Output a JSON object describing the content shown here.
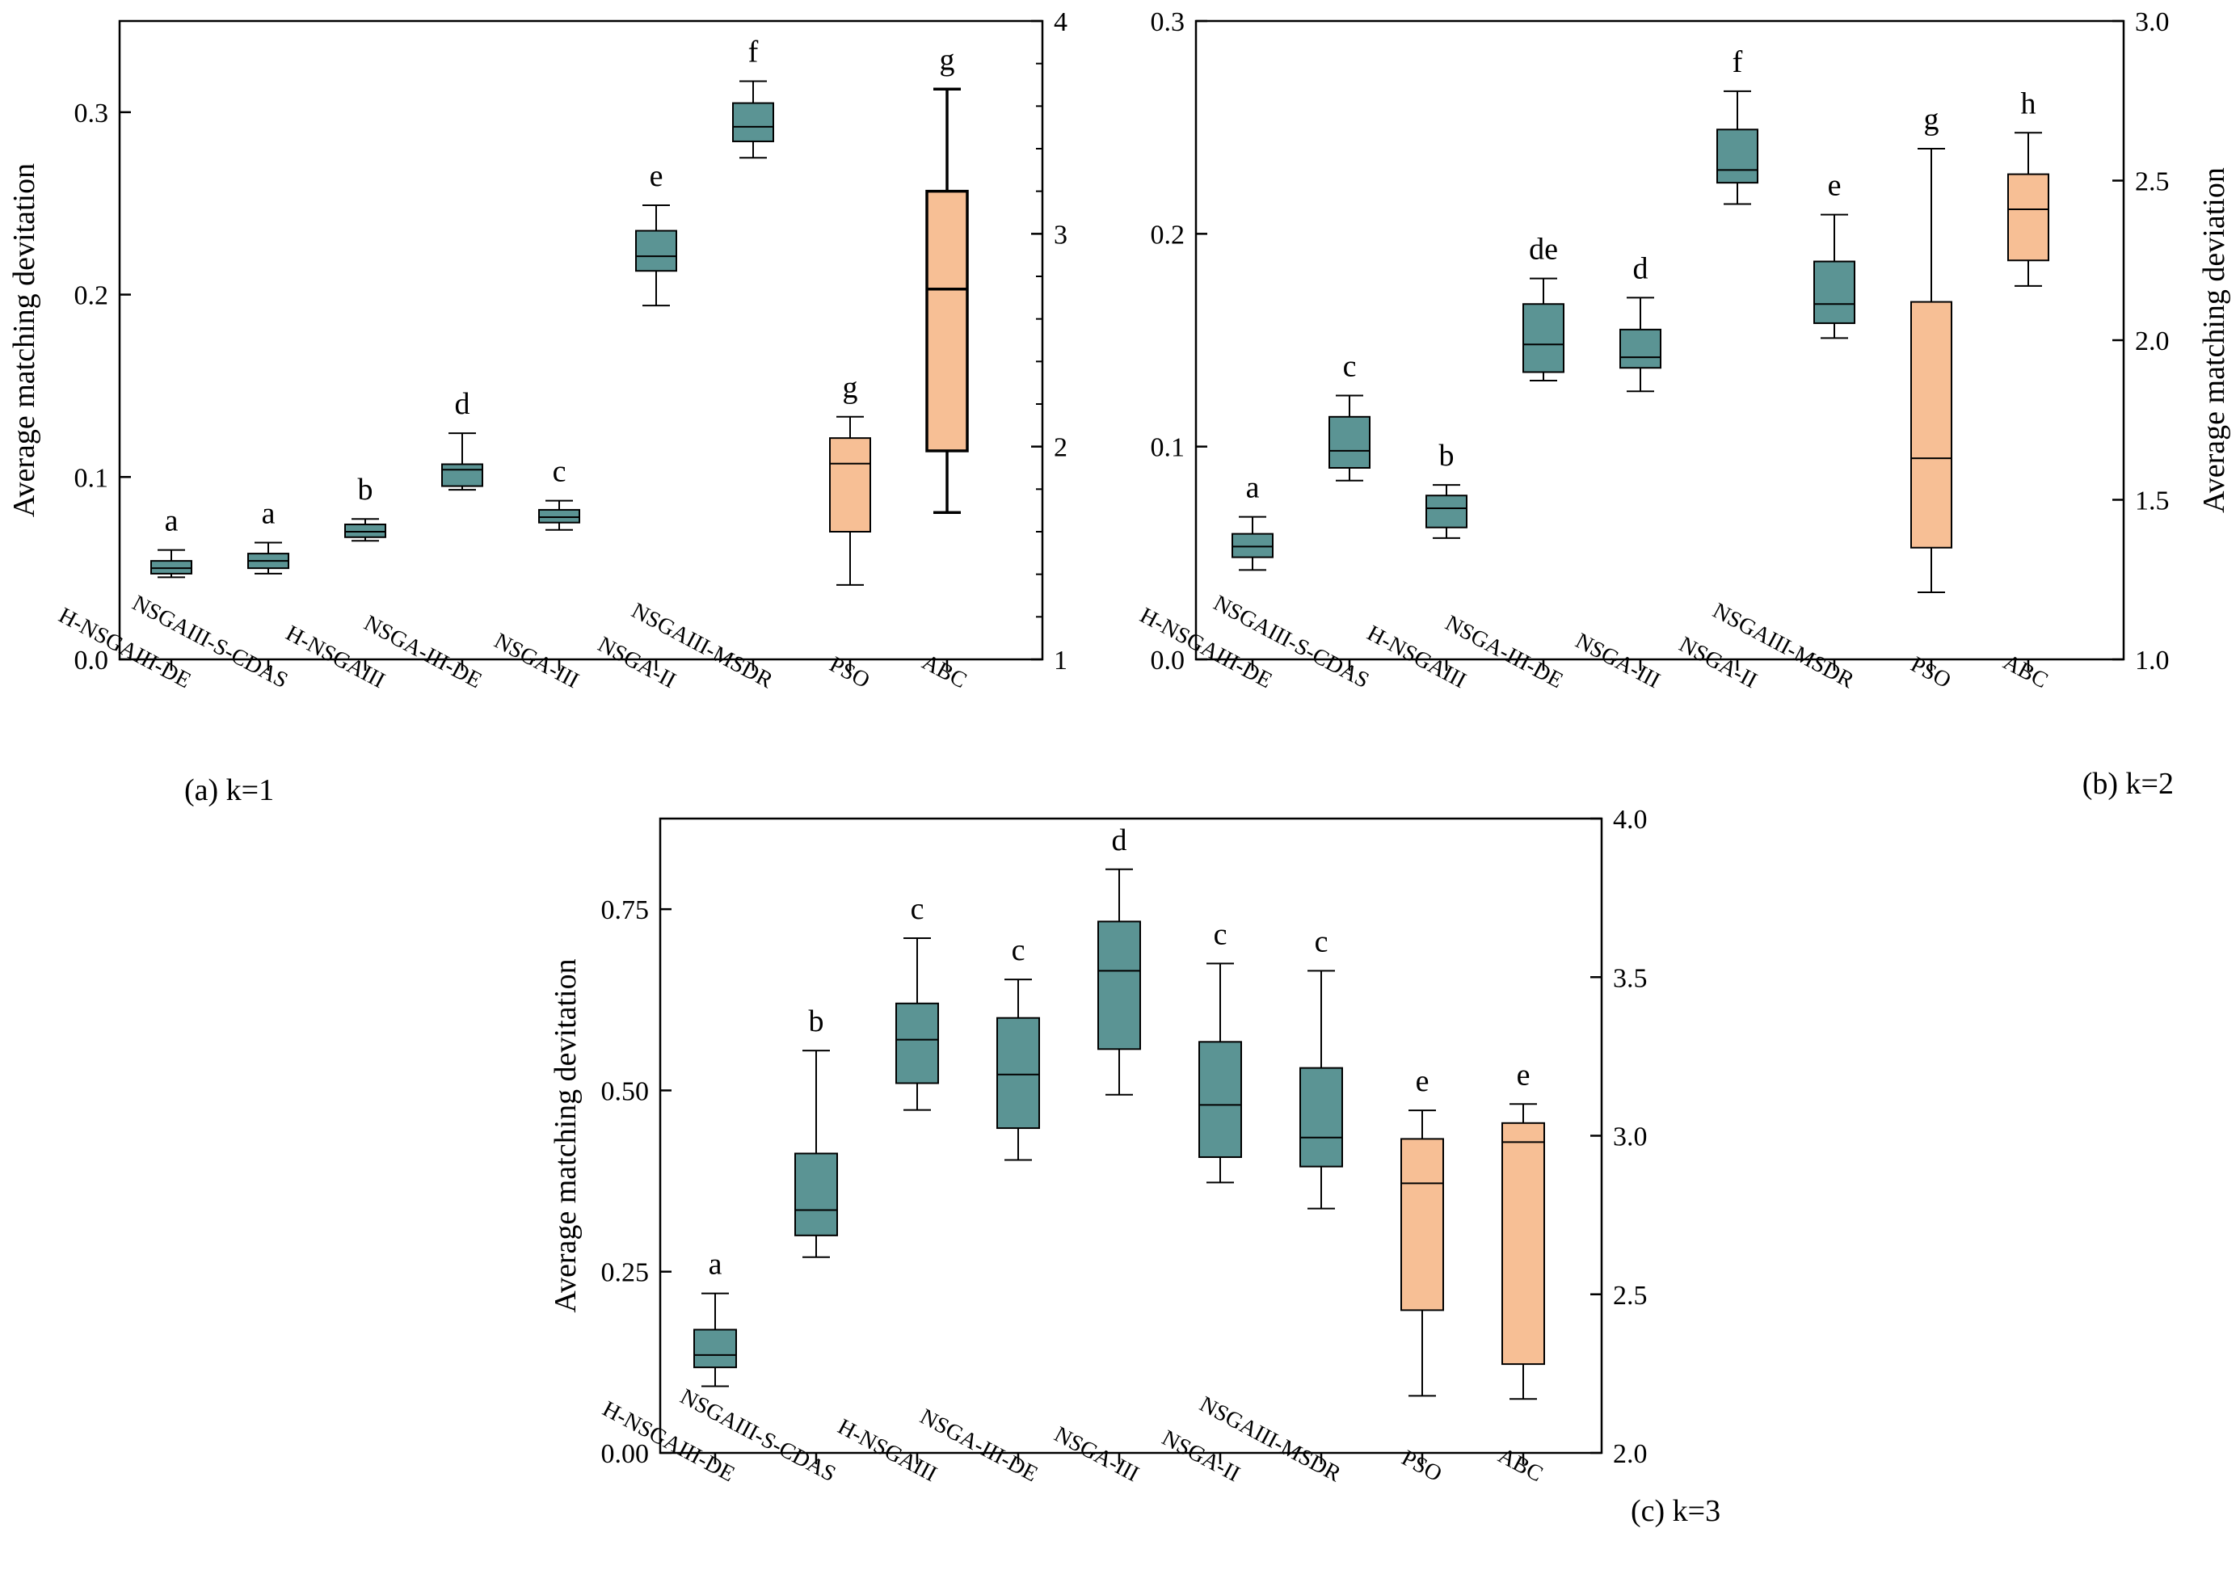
{
  "figure": {
    "colors": {
      "teal": "#5b9494",
      "orange": "#f7bf95",
      "axis": "#000000"
    }
  },
  "chart_data": [
    {
      "type": "box",
      "panel_label": "(a) k=1",
      "ylabel": "Average matching devitation",
      "ylim": [
        0,
        0.35
      ],
      "yticks": [
        "0.0",
        "0.1",
        "0.2",
        "0.3"
      ],
      "y2lim": [
        1,
        4
      ],
      "y2ticks": [
        "1",
        "2",
        "3",
        "4"
      ],
      "categories": [
        "H-NSGAIII-DE",
        "NSGAIII-S-CDAS",
        "H-NSGAIII",
        "NSGA-III-DE",
        "NSGA-III",
        "NSGA-II",
        "NSGAIII-MSDR",
        "PSO",
        "ABC"
      ],
      "boxes": [
        {
          "min": 0.045,
          "q1": 0.047,
          "median": 0.05,
          "q3": 0.054,
          "max": 0.06,
          "letter": "a",
          "axis": "left"
        },
        {
          "min": 0.047,
          "q1": 0.05,
          "median": 0.054,
          "q3": 0.058,
          "max": 0.064,
          "letter": "a",
          "axis": "left"
        },
        {
          "min": 0.065,
          "q1": 0.067,
          "median": 0.07,
          "q3": 0.074,
          "max": 0.077,
          "letter": "b",
          "axis": "left"
        },
        {
          "min": 0.093,
          "q1": 0.095,
          "median": 0.104,
          "q3": 0.107,
          "max": 0.124,
          "letter": "d",
          "axis": "left"
        },
        {
          "min": 0.071,
          "q1": 0.075,
          "median": 0.078,
          "q3": 0.082,
          "max": 0.087,
          "letter": "c",
          "axis": "left"
        },
        {
          "min": 0.194,
          "q1": 0.213,
          "median": 0.221,
          "q3": 0.235,
          "max": 0.249,
          "letter": "e",
          "axis": "left"
        },
        {
          "min": 0.275,
          "q1": 0.284,
          "median": 0.292,
          "q3": 0.305,
          "max": 0.317,
          "letter": "f",
          "axis": "left"
        },
        {
          "min": 1.35,
          "q1": 1.6,
          "median": 1.92,
          "q3": 2.04,
          "max": 2.14,
          "letter": "g",
          "axis": "right"
        },
        {
          "min": 1.69,
          "q1": 1.98,
          "median": 2.74,
          "q3": 3.2,
          "max": 3.68,
          "letter": "g",
          "axis": "right"
        }
      ]
    },
    {
      "type": "box",
      "panel_label": "(b) k=2",
      "ylabel": "Average matching deviation",
      "ylim": [
        0,
        0.3
      ],
      "yticks": [
        "0.0",
        "0.1",
        "0.2",
        "0.3"
      ],
      "y2lim": [
        1.0,
        3.0
      ],
      "y2ticks": [
        "1.0",
        "1.5",
        "2.0",
        "2.5",
        "3.0"
      ],
      "categories": [
        "H-NSGAIII-DE",
        "NSGAIII-S-CDAS",
        "H-NSGAIII",
        "NSGA-III-DE",
        "NSGA-III",
        "NSGA-II",
        "NSGAIII-MSDR",
        "PSO",
        "ABC"
      ],
      "boxes": [
        {
          "min": 0.042,
          "q1": 0.048,
          "median": 0.053,
          "q3": 0.059,
          "max": 0.067,
          "letter": "a",
          "axis": "left"
        },
        {
          "min": 0.084,
          "q1": 0.09,
          "median": 0.098,
          "q3": 0.114,
          "max": 0.124,
          "letter": "c",
          "axis": "left"
        },
        {
          "min": 0.057,
          "q1": 0.062,
          "median": 0.071,
          "q3": 0.077,
          "max": 0.082,
          "letter": "b",
          "axis": "left"
        },
        {
          "min": 0.131,
          "q1": 0.135,
          "median": 0.148,
          "q3": 0.167,
          "max": 0.179,
          "letter": "de",
          "axis": "left"
        },
        {
          "min": 0.126,
          "q1": 0.137,
          "median": 0.142,
          "q3": 0.155,
          "max": 0.17,
          "letter": "d",
          "axis": "left"
        },
        {
          "min": 0.214,
          "q1": 0.224,
          "median": 0.23,
          "q3": 0.249,
          "max": 0.267,
          "letter": "f",
          "axis": "left"
        },
        {
          "min": 0.151,
          "q1": 0.158,
          "median": 0.167,
          "q3": 0.187,
          "max": 0.209,
          "letter": "e",
          "axis": "left"
        },
        {
          "min": 1.21,
          "q1": 1.35,
          "median": 1.63,
          "q3": 2.12,
          "max": 2.6,
          "letter": "g",
          "axis": "right"
        },
        {
          "min": 2.17,
          "q1": 2.25,
          "median": 2.41,
          "q3": 2.52,
          "max": 2.65,
          "letter": "h",
          "axis": "right"
        }
      ]
    },
    {
      "type": "box",
      "panel_label": "(c) k=3",
      "ylabel": "Average matching devitation",
      "ylim": [
        0,
        0.875
      ],
      "yticks": [
        "0.00",
        "0.25",
        "0.50",
        "0.75"
      ],
      "y2lim": [
        2.0,
        4.0
      ],
      "y2ticks": [
        "2.0",
        "2.5",
        "3.0",
        "3.5",
        "4.0"
      ],
      "categories": [
        "H-NSGAIII-DE",
        "NSGAIII-S-CDAS",
        "H-NSGAIII",
        "NSGA-III-DE",
        "NSGA-III",
        "NSGA-II",
        "NSGAIII-MSDR",
        "PSO",
        "ABC"
      ],
      "boxes": [
        {
          "min": 0.092,
          "q1": 0.118,
          "median": 0.135,
          "q3": 0.17,
          "max": 0.22,
          "letter": "a",
          "axis": "left"
        },
        {
          "min": 0.27,
          "q1": 0.3,
          "median": 0.335,
          "q3": 0.413,
          "max": 0.555,
          "letter": "b",
          "axis": "left"
        },
        {
          "min": 0.473,
          "q1": 0.51,
          "median": 0.57,
          "q3": 0.62,
          "max": 0.71,
          "letter": "c",
          "axis": "left"
        },
        {
          "min": 0.404,
          "q1": 0.448,
          "median": 0.522,
          "q3": 0.6,
          "max": 0.653,
          "letter": "c",
          "axis": "left"
        },
        {
          "min": 0.494,
          "q1": 0.557,
          "median": 0.665,
          "q3": 0.733,
          "max": 0.805,
          "letter": "d",
          "axis": "left"
        },
        {
          "min": 0.373,
          "q1": 0.408,
          "median": 0.48,
          "q3": 0.567,
          "max": 0.675,
          "letter": "c",
          "axis": "left"
        },
        {
          "min": 0.337,
          "q1": 0.395,
          "median": 0.435,
          "q3": 0.531,
          "max": 0.665,
          "letter": "c",
          "axis": "left"
        },
        {
          "min": 2.18,
          "q1": 2.45,
          "median": 2.85,
          "q3": 2.99,
          "max": 3.08,
          "letter": "e",
          "axis": "right"
        },
        {
          "min": 2.17,
          "q1": 2.28,
          "median": 2.98,
          "q3": 3.04,
          "max": 3.1,
          "letter": "e",
          "axis": "right"
        }
      ]
    }
  ]
}
